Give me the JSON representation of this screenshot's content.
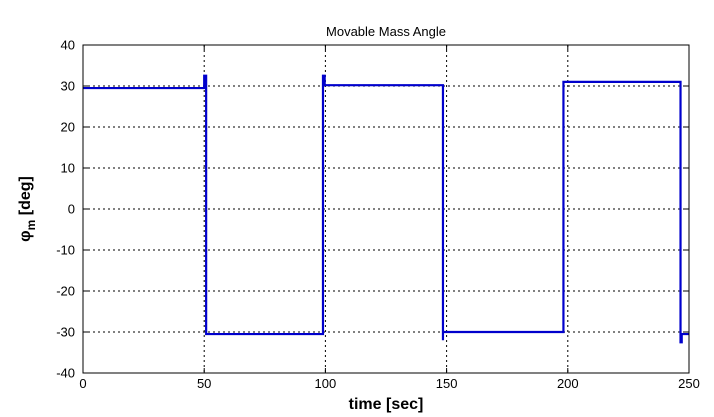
{
  "chart_data": {
    "type": "line",
    "title": "Movable Mass Angle",
    "xlabel": "time [sec]",
    "ylabel": {
      "symbol": "φ",
      "subscript": "m",
      "suffix": " [deg]"
    },
    "xlim": [
      0,
      250
    ],
    "ylim": [
      -40,
      40
    ],
    "x_ticks": [
      0,
      50,
      100,
      150,
      200,
      250
    ],
    "y_ticks": [
      -40,
      -30,
      -20,
      -10,
      0,
      10,
      20,
      30,
      40
    ],
    "grid": true,
    "grid_style": "dotted",
    "series": [
      {
        "color": "#0000cc",
        "x": [
          0,
          50,
          50,
          50.8,
          50.8,
          50.8,
          99,
          99,
          99,
          99.7,
          99.7,
          99.7,
          147.8,
          147.8,
          148.5,
          148.5,
          148.5,
          197.7,
          197.7,
          198.2,
          198.2,
          198.2,
          246.5,
          246.5,
          246.5,
          247,
          247,
          250
        ],
        "y": [
          29.5,
          29.5,
          32.5,
          32.5,
          -30.5,
          -30.5,
          -30.5,
          -30.5,
          32.5,
          32.5,
          30.2,
          30.2,
          30.2,
          30.2,
          30.2,
          -32,
          -30,
          -30,
          -30,
          -30,
          31,
          31,
          31,
          31,
          -32.5,
          -32.5,
          -30.5,
          -30.5
        ]
      }
    ]
  }
}
